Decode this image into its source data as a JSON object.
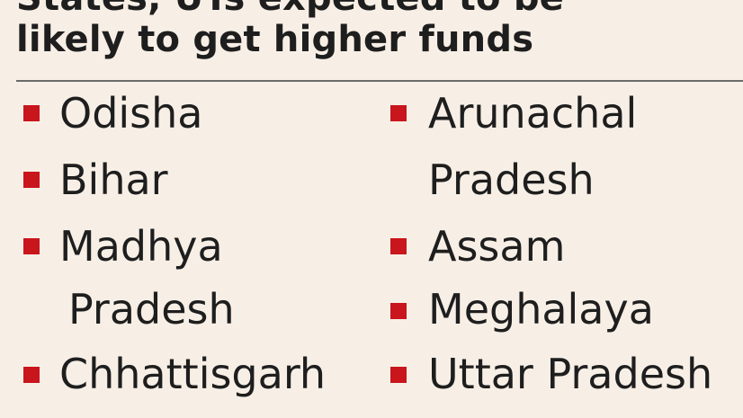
{
  "header": {
    "top_cut": "States, UTs expected to be",
    "title": "likely to get higher funds"
  },
  "list": {
    "left_column": [
      "Odisha",
      "Bihar",
      "Madhya",
      "Pradesh",
      "Chhattisgarh"
    ],
    "right_column": [
      "Arunachal",
      "Pradesh",
      "Assam",
      "Meghalaya",
      "Uttar Pradesh"
    ]
  },
  "colors": {
    "background": "#f7efe6",
    "text": "#1e1e1e",
    "bullet": "#c9151c",
    "rule": "#6a6a6a"
  }
}
